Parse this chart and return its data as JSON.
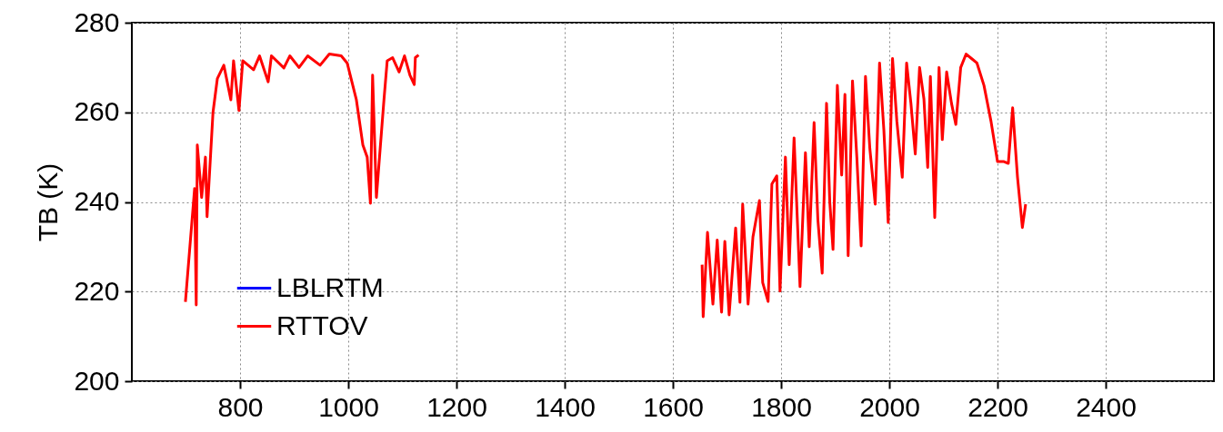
{
  "chart_data": {
    "type": "line",
    "ylabel": "TB (K)",
    "xlim": [
      600,
      2600
    ],
    "ylim": [
      200,
      280
    ],
    "xticks": [
      800,
      1000,
      1200,
      1400,
      1600,
      1800,
      2000,
      2200,
      2400
    ],
    "yticks": [
      200,
      220,
      240,
      260,
      280
    ],
    "grid": true,
    "legend": "bottom left",
    "line_style": "solid",
    "series": [
      {
        "name": "LBLRTM",
        "color": "#0000ff"
      },
      {
        "name": "RTTOV",
        "color": "#ff0000",
        "x": [
          699,
          716,
          719,
          721,
          729,
          736,
          739,
          750,
          758,
          770,
          783,
          788,
          798,
          805,
          825,
          836,
          852,
          858,
          881,
          892,
          909,
          925,
          948,
          965,
          987,
          998,
          1015,
          1027,
          1035,
          1041,
          1045,
          1052,
          1066,
          1072,
          1082,
          1094,
          1104,
          1114,
          1122,
          1124,
          1130,
          1390,
          1654,
          1656,
          1664,
          1674,
          1682,
          1690,
          1696,
          1704,
          1716,
          1724,
          1729,
          1739,
          1748,
          1760,
          1766,
          1776,
          1783,
          1792,
          1798,
          1808,
          1815,
          1824,
          1835,
          1845,
          1852,
          1861,
          1868,
          1876,
          1884,
          1890,
          1896,
          1904,
          1912,
          1918,
          1924,
          1932,
          1940,
          1948,
          1956,
          1964,
          1974,
          1982,
          1990,
          1998,
          2006,
          2014,
          2024,
          2032,
          2040,
          2048,
          2056,
          2064,
          2071,
          2076,
          2084,
          2092,
          2098,
          2106,
          2115,
          2123,
          2132,
          2142,
          2152,
          2162,
          2175,
          2188,
          2200,
          2212,
          2220,
          2228,
          2237,
          2246,
          2252
        ],
        "values": [
          217.7,
          243,
          217,
          252.7,
          241,
          250,
          236.7,
          260,
          267.5,
          270.5,
          262.8,
          271.5,
          260.4,
          271.5,
          269.5,
          272.6,
          266.8,
          272.6,
          269.9,
          272.6,
          270,
          272.6,
          270.5,
          273,
          272.6,
          271,
          262.8,
          252.7,
          250,
          239.7,
          268.3,
          241,
          262.8,
          271.5,
          272.2,
          269,
          272.6,
          268.3,
          266.2,
          272.2,
          272.8,
          null,
          226,
          214.4,
          233.2,
          217.2,
          231.5,
          215.4,
          231.2,
          214.8,
          234.2,
          217.6,
          239.5,
          217.2,
          232.2,
          240.3,
          222,
          217.8,
          244,
          245.8,
          220.1,
          250,
          226,
          254.3,
          221.1,
          251,
          230,
          257.7,
          236,
          224.1,
          262,
          240,
          229.4,
          266,
          246,
          264,
          228,
          267,
          250,
          230.2,
          268,
          252,
          239.5,
          271,
          256,
          235.4,
          272,
          258,
          245.5,
          271,
          262,
          250.7,
          270,
          263,
          247.7,
          268,
          236.5,
          270,
          253.9,
          269,
          262,
          257.3,
          270,
          273,
          272,
          271,
          266,
          258,
          249,
          249,
          248.6,
          261,
          245.5,
          234.3,
          239.5
        ]
      }
    ]
  }
}
